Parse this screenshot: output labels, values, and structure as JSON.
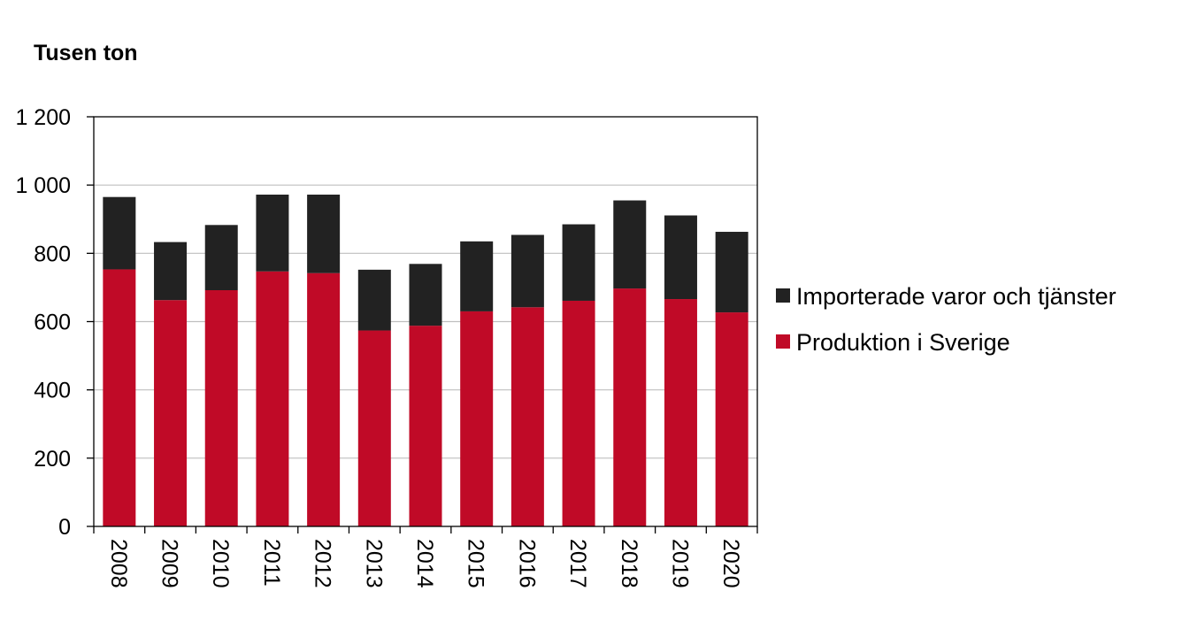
{
  "chart_data": {
    "type": "bar",
    "stacked": true,
    "title": "",
    "unit_label": "Tusen ton",
    "xlabel": "",
    "ylabel": "Tusen ton",
    "ylim": [
      0,
      1200
    ],
    "yticks": [
      0,
      200,
      400,
      600,
      800,
      1000,
      1200
    ],
    "ytick_labels": [
      "0",
      "200",
      "400",
      "600",
      "800",
      "1 000",
      "1 200"
    ],
    "grid": true,
    "legend_position": "right",
    "categories": [
      "2008",
      "2009",
      "2010",
      "2011",
      "2012",
      "2013",
      "2014",
      "2015",
      "2016",
      "2017",
      "2018",
      "2019",
      "2020"
    ],
    "series": [
      {
        "name": "Produktion i Sverige",
        "color": "#C00A27",
        "values": [
          753,
          663,
          692,
          747,
          742,
          574,
          588,
          630,
          642,
          661,
          697,
          666,
          627
        ]
      },
      {
        "name": "Importerade varor och tjänster",
        "color": "#222222",
        "values": [
          212,
          170,
          191,
          225,
          230,
          178,
          181,
          205,
          212,
          224,
          258,
          245,
          236
        ]
      }
    ]
  }
}
